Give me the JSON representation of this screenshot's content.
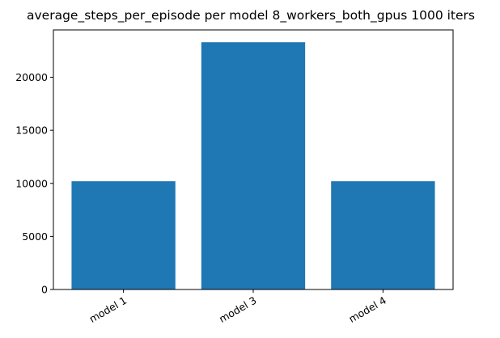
{
  "chart_data": {
    "type": "bar",
    "title": "average_steps_per_episode per model 8_workers_both_gpus 1000 iters",
    "xlabel": "",
    "ylabel": "",
    "categories": [
      "model 1",
      "model 3",
      "model 4"
    ],
    "values": [
      10200,
      23300,
      10200
    ],
    "ylim": [
      0,
      24460
    ],
    "yticks": [
      0,
      5000,
      10000,
      15000,
      20000
    ],
    "ytick_labels": [
      "0",
      "5000",
      "10000",
      "15000",
      "20000"
    ],
    "bar_color": "#1f77b4",
    "grid": false,
    "legend": "none"
  }
}
